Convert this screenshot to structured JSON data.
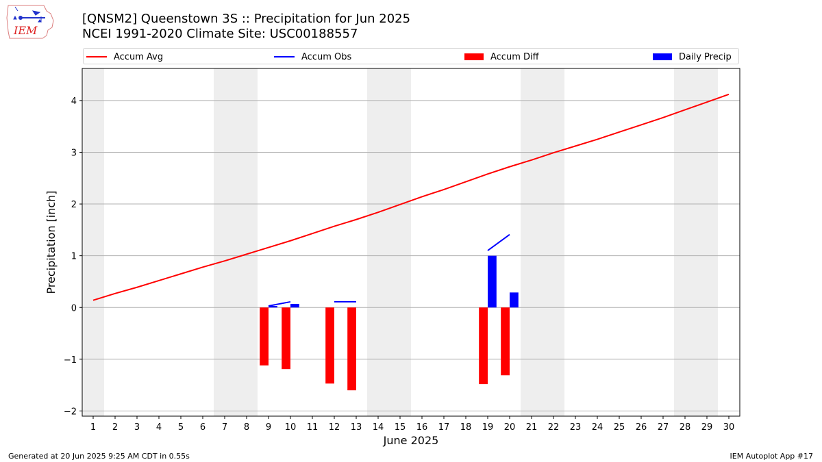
{
  "header": {
    "title_line1": "[QNSM2] Queenstown 3S :: Precipitation for Jun 2025",
    "title_line2": "NCEI 1991-2020 Climate Site: USC00188557",
    "logo_text": "IEM"
  },
  "legend": {
    "accum_avg": "Accum Avg",
    "accum_obs": "Accum Obs",
    "accum_diff": "Accum Diff",
    "daily_precip": "Daily Precip"
  },
  "colors": {
    "avg": "#ff0000",
    "obs": "#0000ff",
    "diff": "#ff0000",
    "daily": "#0000ff",
    "weekend": "#eeeeee",
    "grid": "#b0b0b0"
  },
  "footer": {
    "generated": "Generated at 20 Jun 2025 9:25 AM CDT in 0.55s",
    "app": "IEM Autoplot App #17"
  },
  "chart_data": {
    "type": "bar",
    "title": "[QNSM2] Queenstown 3S :: Precipitation for Jun 2025",
    "subtitle": "NCEI 1991-2020 Climate Site: USC00188557",
    "xlabel": "June 2025",
    "ylabel": "Precipitation [inch]",
    "xlim": [
      0.5,
      30.5
    ],
    "ylim": [
      -2.1,
      4.62
    ],
    "yticks": [
      -2,
      -1,
      0,
      1,
      2,
      3,
      4
    ],
    "ytick_labels": [
      "−2",
      "−1",
      "0",
      "1",
      "2",
      "3",
      "4"
    ],
    "xticks": [
      1,
      2,
      3,
      4,
      5,
      6,
      7,
      8,
      9,
      10,
      11,
      12,
      13,
      14,
      15,
      16,
      17,
      18,
      19,
      20,
      21,
      22,
      23,
      24,
      25,
      26,
      27,
      28,
      29,
      30
    ],
    "grid": "horizontal",
    "legend_position": "top",
    "weekend_spans": [
      [
        0.5,
        1.5
      ],
      [
        6.5,
        8.5
      ],
      [
        13.5,
        15.5
      ],
      [
        20.5,
        22.5
      ],
      [
        27.5,
        29.5
      ]
    ],
    "series": [
      {
        "name": "Accum Avg",
        "type": "line",
        "x": [
          1,
          2,
          3,
          4,
          5,
          6,
          7,
          8,
          9,
          10,
          11,
          12,
          13,
          14,
          15,
          16,
          17,
          18,
          19,
          20,
          21,
          22,
          23,
          24,
          25,
          26,
          27,
          28,
          29,
          30
        ],
        "values": [
          0.14,
          0.27,
          0.39,
          0.52,
          0.65,
          0.78,
          0.9,
          1.03,
          1.16,
          1.29,
          1.43,
          1.57,
          1.7,
          1.84,
          1.99,
          2.14,
          2.28,
          2.43,
          2.58,
          2.72,
          2.85,
          2.99,
          3.12,
          3.25,
          3.39,
          3.53,
          3.67,
          3.82,
          3.97,
          4.12
        ]
      },
      {
        "name": "Accum Obs",
        "type": "line",
        "segments": [
          {
            "x": [
              9,
              10
            ],
            "values": [
              0.03,
              0.11
            ]
          },
          {
            "x": [
              12,
              13
            ],
            "values": [
              0.11,
              0.11
            ]
          },
          {
            "x": [
              19,
              20
            ],
            "values": [
              1.1,
              1.41
            ]
          }
        ]
      },
      {
        "name": "Accum Diff",
        "type": "bar",
        "x": [
          9,
          10,
          12,
          13,
          19,
          20
        ],
        "values": [
          -1.12,
          -1.19,
          -1.47,
          -1.6,
          -1.48,
          -1.31
        ]
      },
      {
        "name": "Daily Precip",
        "type": "bar",
        "x": [
          9,
          10,
          19,
          20
        ],
        "values": [
          0.03,
          0.07,
          1.0,
          0.29
        ]
      }
    ]
  }
}
